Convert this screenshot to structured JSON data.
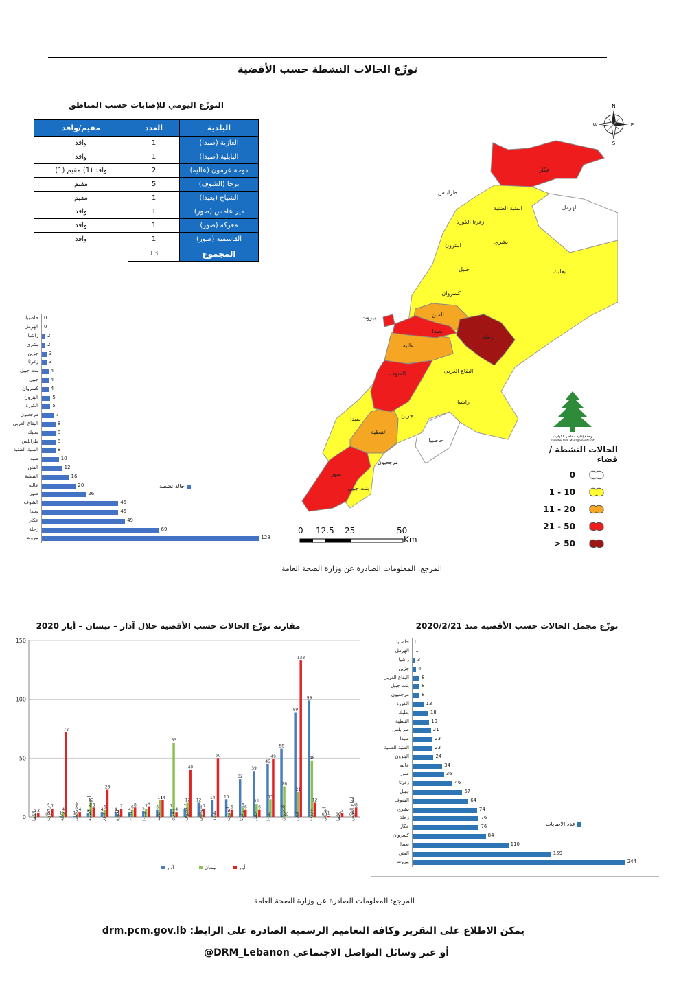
{
  "header": {
    "title": "توزّع الحالات النشطة حسب الأقضية"
  },
  "daily_table": {
    "title": "التوزّع اليومي للإصابات حسب المناطق",
    "columns": [
      "البلدية",
      "العدد",
      "مقيم/وافد"
    ],
    "rows": [
      {
        "muni": "الغازية (صيدا)",
        "count": "1",
        "status": "وافد"
      },
      {
        "muni": "البابلية (صيدا)",
        "count": "1",
        "status": "وافد"
      },
      {
        "muni": "دوحة عرمون (عاليه)",
        "count": "2",
        "status": "وافد (1) مقيم (1)"
      },
      {
        "muni": "برجا (الشوف)",
        "count": "5",
        "status": "مقيم"
      },
      {
        "muni": "الشياح (بعبدا)",
        "count": "1",
        "status": "مقيم"
      },
      {
        "muni": "دير عامس (صور)",
        "count": "1",
        "status": "وافد"
      },
      {
        "muni": "معركة (صور)",
        "count": "1",
        "status": "وافد"
      },
      {
        "muni": "القاسمية (صور)",
        "count": "1",
        "status": "وافد"
      }
    ],
    "total_label": "المجموع",
    "total_value": "13"
  },
  "active_chart": {
    "legend": "حالة نشطة",
    "color": "#4472c4"
  },
  "map": {
    "labels": [
      "عكار",
      "طرابلس",
      "الهرمل",
      "المنية الضنية",
      "زغرتا الكورة",
      "بشري",
      "البترون",
      "جبيل",
      "بعلبك",
      "كسروان",
      "بيروت",
      "المتن",
      "بعبدا",
      "زحلة",
      "عاليه",
      "الشوف",
      "البقاع الغربي",
      "راشيا",
      "جزين",
      "صيدا",
      "النبطية",
      "حاصبيا",
      "مرجعيون",
      "صور",
      "بنت جبيل"
    ],
    "compass": {
      "n": "N",
      "s": "S",
      "e": "E",
      "w": "W"
    },
    "logo_caption": "وحدة إدارة مخاطر الكوارث",
    "logo_caption_en": "Disaster Risk Management Unit",
    "legend_title": "الحالات النشطة / قضاء",
    "legend": [
      {
        "label": "0",
        "color": "#ffffff"
      },
      {
        "label": "1 - 10",
        "color": "#ffff33"
      },
      {
        "label": "11 - 20",
        "color": "#f5a623"
      },
      {
        "label": "21 - 50",
        "color": "#ee1c1c"
      },
      {
        "label": "> 50",
        "color": "#a01414"
      }
    ],
    "scale": {
      "ticks": [
        "0",
        "12.5",
        "25",
        "50"
      ],
      "unit": "Km"
    }
  },
  "source1": "المرجع: المعلومات الصادرة عن وزارة الصحة العامة",
  "comparison_chart_title": "مقارنة توزّع الحالات حسب الأقضية خلال آذار – نيسان – أيار 2020",
  "total_chart_title": "توزّع مجمل الحالات حسب الأقضية منذ 2020/2/21",
  "source2": "المرجع: المعلومات الصادرة عن وزارة الصحة العامة",
  "footer": {
    "line1": "يمكن الاطلاع على التقرير وكافة التعاميم الرسمية الصادرة على الرابط: drm.pcm.gov.lb",
    "line2": "أو عبر وسائل التواصل الاجتماعي DRM_Lebanon@"
  },
  "chart_data": [
    {
      "type": "bar",
      "orientation": "horizontal",
      "categories": [
        "حاصبيا",
        "الهرمل",
        "راشيا",
        "بشري",
        "جزين",
        "زغرتا",
        "بنت جبيل",
        "جبيل",
        "كسروان",
        "البترون",
        "الكورة",
        "مرجعيون",
        "البقاع الغربي",
        "بعلبك",
        "طرابلس",
        "المنية الضنية",
        "صيدا",
        "المتن",
        "النبطية",
        "عاليه",
        "صور",
        "الشوف",
        "بعبدا",
        "عكار",
        "زحلة",
        "بيروت"
      ],
      "series": [
        {
          "name": "حالة نشطة",
          "values": [
            0,
            0,
            2,
            2,
            3,
            3,
            4,
            4,
            4,
            5,
            5,
            7,
            8,
            8,
            8,
            8,
            10,
            12,
            16,
            20,
            26,
            45,
            45,
            49,
            69,
            128
          ]
        }
      ],
      "xlim": [
        0,
        140
      ],
      "color": "#4472c4"
    },
    {
      "type": "bar",
      "title": "مقارنة توزّع الحالات حسب الأقضية خلال آذار – نيسان – أيار 2020",
      "categories": [
        "حاصبيا",
        "مرجعيون",
        "زحلة",
        "بنت جبيل",
        "المنية الضنية",
        "صور",
        "الكورة",
        "بعلبك",
        "صيدا",
        "عاليه",
        "بشري",
        "الشوف",
        "طرابلس",
        "عكار",
        "البترون",
        "زغرتا",
        "جبيل",
        "بعبدا",
        "كسروان",
        "المتن",
        "بيروت",
        "الهرمل",
        "راشيا",
        "البقاع الغربي"
      ],
      "series": [
        {
          "name": "آذار",
          "color": "#4a7ebb",
          "values": [
            0,
            0,
            1,
            1,
            3,
            4,
            4,
            4,
            5,
            6,
            7,
            7,
            12,
            14,
            15,
            32,
            39,
            45,
            58,
            89,
            99,
            0,
            0,
            0
          ]
        },
        {
          "name": "نيسان",
          "color": "#8cc152",
          "values": [
            1,
            1,
            4,
            2,
            12,
            6,
            2,
            6,
            7,
            14,
            63,
            12,
            2,
            1,
            3,
            8,
            11,
            15,
            26,
            21,
            48,
            0,
            0,
            0
          ]
        },
        {
          "name": "أيار",
          "color": "#e02424",
          "values": [
            3,
            7,
            72,
            4,
            8,
            23,
            7,
            8,
            9,
            14,
            4,
            40,
            7,
            50,
            6,
            6,
            6,
            49,
            0,
            133,
            12,
            1,
            3,
            8
          ]
        }
      ],
      "ylim": [
        0,
        150
      ],
      "yticks": [
        0,
        50,
        100,
        150
      ],
      "grid": true,
      "legend": "bottom"
    },
    {
      "type": "bar",
      "orientation": "horizontal",
      "title": "توزّع مجمل الحالات حسب الأقضية منذ 2020/2/21",
      "categories": [
        "حاصبيا",
        "الهرمل",
        "راشيا",
        "جزين",
        "البقاع الغربي",
        "بنت جبيل",
        "مرجعيون",
        "الكورة",
        "بعلبك",
        "النبطية",
        "طرابلس",
        "صيدا",
        "المنية الضنية",
        "البترون",
        "عاليه",
        "صور",
        "زغرتا",
        "جبيل",
        "الشوف",
        "بشري",
        "زحلة",
        "عكار",
        "كسروان",
        "بعبدا",
        "المتن",
        "بيروت"
      ],
      "series": [
        {
          "name": "عدد الاصابات",
          "values": [
            0,
            1,
            3,
            4,
            8,
            8,
            8,
            13,
            18,
            19,
            21,
            23,
            23,
            24,
            34,
            36,
            46,
            57,
            64,
            74,
            76,
            76,
            84,
            110,
            159,
            244
          ]
        }
      ],
      "xlim": [
        0,
        260
      ],
      "color": "#2e75b6"
    }
  ]
}
